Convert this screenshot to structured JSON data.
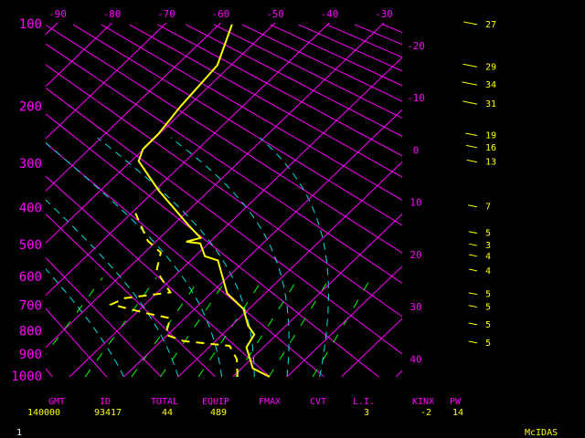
{
  "chart_data": {
    "type": "skewt",
    "ylim": [
      1000,
      100
    ],
    "yticks": [
      100,
      200,
      300,
      400,
      500,
      600,
      700,
      800,
      900,
      1000
    ],
    "xticks": [
      -90,
      -80,
      -70,
      -60,
      -50,
      -40,
      -30,
      -20,
      -10,
      0,
      10,
      20,
      30,
      40
    ],
    "isotherm_color": "#ff00ff",
    "series": [
      {
        "color": "#ffff00",
        "style": "solid",
        "y": [
          1000,
          960,
          866,
          812,
          775,
          711,
          654,
          545,
          532,
          494,
          489,
          478,
          443,
          357,
          294,
          271,
          243,
          198,
          143,
          100
        ],
        "values": [
          16.8,
          12.1,
          6.9,
          5.9,
          3.0,
          -1.0,
          -7.0,
          -15.0,
          -18.2,
          -21.5,
          -24.4,
          -22.5,
          -27.2,
          -39.3,
          -48.6,
          -50.1,
          -50.2,
          -51.4,
          -52.5,
          -57.6
        ]
      },
      {
        "color": "#ffff00",
        "style": "dashed",
        "y": [
          1000,
          918,
          859,
          839,
          812,
          746,
          728,
          694,
          671,
          651,
          578,
          521,
          486,
          412
        ],
        "values": [
          10.9,
          7.4,
          3.5,
          -5.8,
          -10.4,
          -12.7,
          -17.8,
          -26.2,
          -24.9,
          -17.6,
          -24.3,
          -27.0,
          -31.7,
          -39.2
        ]
      }
    ],
    "winds": {
      "color": "#ffff00",
      "pressure": [
        100,
        145,
        168,
        195,
        246,
        268,
        296,
        396,
        465,
        500,
        532,
        578,
        658,
        704,
        772,
        847
      ],
      "speed": [
        27,
        29,
        34,
        31,
        19,
        16,
        13,
        7,
        5,
        3,
        4,
        4,
        5,
        5,
        5,
        5
      ]
    },
    "indices": {
      "headers": [
        "GMT",
        "ID",
        "TOTAL",
        "EQUIP",
        "FMAX",
        "CVT",
        "L.I.",
        "KINX",
        "PW"
      ],
      "values": [
        140000,
        93417,
        44,
        489,
        null,
        null,
        3,
        -2,
        14
      ]
    },
    "frame": "1",
    "footer_label": "McIDAS"
  }
}
